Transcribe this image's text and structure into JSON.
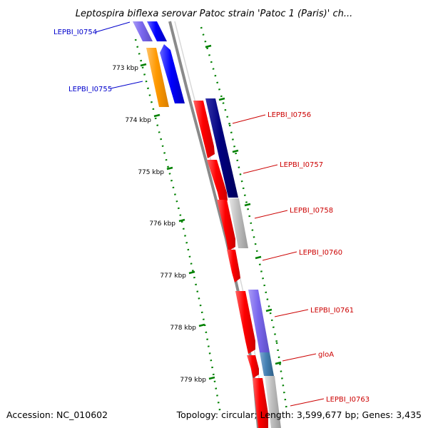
{
  "title": "Leptospira biflexa serovar Patoc strain 'Patoc 1 (Paris)' ch...",
  "footer": {
    "accession": "Accession: NC_010602",
    "summary": "Topology: circular; Length: 3,599,677 bp; Genes: 3,435"
  },
  "ruler": {
    "ticks": [
      "773 kbp",
      "774 kbp",
      "775 kbp",
      "776 kbp",
      "777 kbp",
      "778 kbp",
      "779 kbp"
    ]
  },
  "colors": {
    "forward_strand_label": "#0000cc",
    "reverse_strand_label": "#cc0000",
    "backbone": "#888888",
    "ruler": "#008000",
    "cds_red": "#ff0000",
    "cds_blue": "#0000ff",
    "cds_navy": "#00007f",
    "cds_violet": "#7b68ee",
    "cds_orange": "#ff9900",
    "cds_grey": "#bfbfbf",
    "cds_steelblue": "#4682b4"
  },
  "genes": [
    {
      "label": "LEPBI_I0754"
    },
    {
      "label": "LEPBI_I0755"
    },
    {
      "label": "LEPBI_I0756"
    },
    {
      "label": "LEPBI_I0757"
    },
    {
      "label": "LEPBI_I0758"
    },
    {
      "label": "LEPBI_I0760"
    },
    {
      "label": "LEPBI_I0761"
    },
    {
      "label": "gloA"
    },
    {
      "label": "LEPBI_I0763"
    }
  ]
}
